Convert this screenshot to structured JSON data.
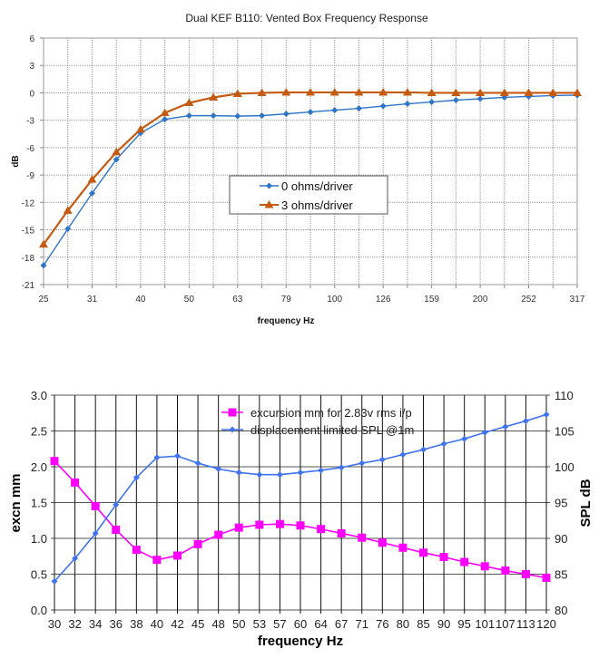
{
  "chart_data": [
    {
      "type": "line",
      "title": "Dual KEF B110: Vented Box Frequency Response",
      "xlabel": "frequency  Hz",
      "ylabel": "dB",
      "ylim": [
        -21,
        6
      ],
      "yticks": [
        6,
        3,
        0,
        -3,
        -6,
        -9,
        -12,
        -15,
        -18,
        -21
      ],
      "grid": true,
      "legend_placement": "center",
      "categories": [
        "25",
        "28",
        "31",
        "35",
        "40",
        "45",
        "50",
        "56",
        "63",
        "71",
        "79",
        "89",
        "100",
        "112",
        "126",
        "141",
        "159",
        "178",
        "200",
        "224",
        "252",
        "283",
        "317"
      ],
      "tick_labels": [
        "25",
        "",
        "31",
        "",
        "40",
        "",
        "50",
        "",
        "63",
        "",
        "79",
        "",
        "100",
        "",
        "126",
        "",
        "159",
        "",
        "200",
        "",
        "252",
        "",
        "317"
      ],
      "series": [
        {
          "name": "0 ohms/driver",
          "color": "#2e75c8",
          "marker": "diamond",
          "values": [
            -18.9,
            -14.9,
            -11.0,
            -7.3,
            -4.4,
            -2.9,
            -2.5,
            -2.5,
            -2.55,
            -2.5,
            -2.3,
            -2.1,
            -1.9,
            -1.7,
            -1.45,
            -1.2,
            -1.0,
            -0.8,
            -0.65,
            -0.5,
            -0.4,
            -0.3,
            -0.25
          ]
        },
        {
          "name": "3 ohms/driver",
          "color": "#c55a11",
          "marker": "triangle",
          "values": [
            -16.6,
            -12.9,
            -9.5,
            -6.5,
            -4.0,
            -2.2,
            -1.1,
            -0.5,
            -0.1,
            0.0,
            0.05,
            0.05,
            0.05,
            0.05,
            0.05,
            0.05,
            0.0,
            0.0,
            0.0,
            0.0,
            0.0,
            0.0,
            0.0
          ]
        }
      ]
    },
    {
      "type": "line",
      "title": "",
      "xlabel": "frequency Hz",
      "ylabel": "excn mm",
      "ylabel_right": "SPL dB",
      "ylim": [
        0,
        3
      ],
      "ylim_right": [
        80,
        110
      ],
      "yticks": [
        "0.0",
        "0.5",
        "1.0",
        "1.5",
        "2.0",
        "2.5",
        "3.0"
      ],
      "yticks_right": [
        "80",
        "85",
        "90",
        "95",
        "100",
        "105",
        "110"
      ],
      "grid": true,
      "legend_placement": "top",
      "categories": [
        "30",
        "32",
        "34",
        "36",
        "38",
        "40",
        "42",
        "45",
        "48",
        "50",
        "53",
        "57",
        "60",
        "64",
        "67",
        "71",
        "76",
        "80",
        "85",
        "90",
        "95",
        "101",
        "107",
        "113",
        "120"
      ],
      "series": [
        {
          "name": "excursion mm for 2.83v rms i/p",
          "axis": "left",
          "color": "#ff00ff",
          "marker": "square",
          "values": [
            2.08,
            1.78,
            1.45,
            1.12,
            0.84,
            0.7,
            0.76,
            0.92,
            1.05,
            1.15,
            1.19,
            1.2,
            1.18,
            1.13,
            1.07,
            1.01,
            0.94,
            0.87,
            0.8,
            0.74,
            0.67,
            0.61,
            0.55,
            0.5,
            0.45
          ]
        },
        {
          "name": "displacement limited SPL @1m",
          "axis": "right",
          "color": "#3f73f0",
          "marker": "diamond",
          "values": [
            84.0,
            87.2,
            90.7,
            94.7,
            98.5,
            101.3,
            101.5,
            100.5,
            99.7,
            99.2,
            98.9,
            98.9,
            99.2,
            99.5,
            99.9,
            100.5,
            101.0,
            101.7,
            102.4,
            103.2,
            103.9,
            104.8,
            105.6,
            106.4,
            107.3
          ]
        }
      ]
    }
  ]
}
